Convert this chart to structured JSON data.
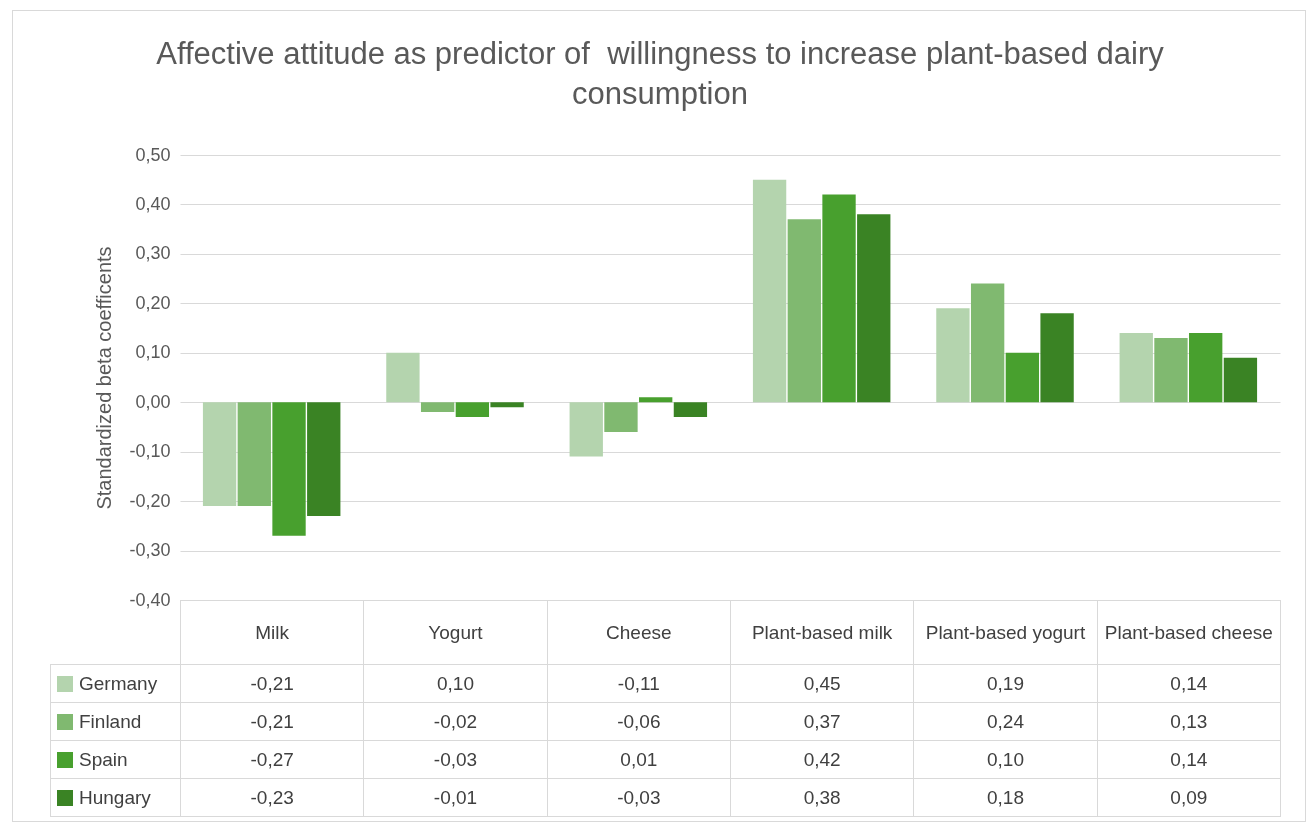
{
  "chart_data": {
    "type": "bar",
    "title": "Affective attitude as predictor of  willingness to increase plant-based dairy consumption",
    "ylabel": "Standardized beta coefficents",
    "categories": [
      "Milk",
      "Yogurt",
      "Cheese",
      "Plant-based milk",
      "Plant-based yogurt",
      "Plant-based cheese"
    ],
    "series": [
      {
        "name": "Germany",
        "color": "#b4d4ae",
        "values": [
          -0.21,
          0.1,
          -0.11,
          0.45,
          0.19,
          0.14
        ],
        "value_labels": [
          "-0,21",
          "0,10",
          "-0,11",
          "0,45",
          "0,19",
          "0,14"
        ]
      },
      {
        "name": "Finland",
        "color": "#80b970",
        "values": [
          -0.21,
          -0.02,
          -0.06,
          0.37,
          0.24,
          0.13
        ],
        "value_labels": [
          "-0,21",
          "-0,02",
          "-0,06",
          "0,37",
          "0,24",
          "0,13"
        ]
      },
      {
        "name": "Spain",
        "color": "#48a02e",
        "values": [
          -0.27,
          -0.03,
          0.01,
          0.42,
          0.1,
          0.14
        ],
        "value_labels": [
          "-0,27",
          "-0,03",
          "0,01",
          "0,42",
          "0,10",
          "0,14"
        ]
      },
      {
        "name": "Hungary",
        "color": "#3a8324",
        "values": [
          -0.23,
          -0.01,
          -0.03,
          0.38,
          0.18,
          0.09
        ],
        "value_labels": [
          "-0,23",
          "-0,01",
          "-0,03",
          "0,38",
          "0,18",
          "0,09"
        ]
      }
    ],
    "ylim": [
      -0.4,
      0.5
    ],
    "yticks": [
      {
        "value": -0.4,
        "label": "-0,40"
      },
      {
        "value": -0.3,
        "label": "-0,30"
      },
      {
        "value": -0.2,
        "label": "-0,20"
      },
      {
        "value": -0.1,
        "label": "-0,10"
      },
      {
        "value": 0,
        "label": "0,00"
      },
      {
        "value": 0.1,
        "label": "0,10"
      },
      {
        "value": 0.2,
        "label": "0,20"
      },
      {
        "value": 0.3,
        "label": "0,30"
      },
      {
        "value": 0.4,
        "label": "0,40"
      },
      {
        "value": 0.5,
        "label": "0,50"
      }
    ],
    "grid": "y",
    "legend": "bottom"
  }
}
